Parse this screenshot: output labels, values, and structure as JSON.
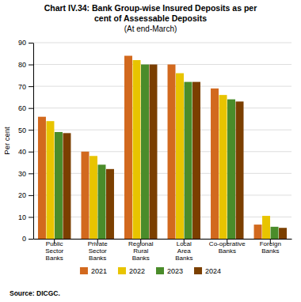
{
  "chart_data": {
    "type": "bar",
    "title": "Chart IV.34: Bank Group-wise Insured Deposits as per\ncent of Assessable Deposits",
    "subtitle": "(At end-March)",
    "y_label": "Per cent",
    "source": "Source: DICGC.",
    "categories": [
      "Public\nSector\nBanks",
      "Private\nSector\nBanks",
      "Regional\nRural\nBanks",
      "Local\nArea\nBanks",
      "Co-operative\nBanks",
      "Foreign\nBanks"
    ],
    "series": [
      {
        "name": "2021",
        "color": "#D2691E",
        "values": [
          56,
          40,
          84,
          80,
          69,
          6.5
        ]
      },
      {
        "name": "2022",
        "color": "#E8C400",
        "values": [
          54,
          38,
          82,
          76,
          66,
          10.5
        ]
      },
      {
        "name": "2023",
        "color": "#4a8c2a",
        "values": [
          49,
          34,
          80,
          72,
          64,
          5.5
        ]
      },
      {
        "name": "2024",
        "color": "#7B3F00",
        "values": [
          48.5,
          32,
          80,
          72,
          63,
          5
        ]
      }
    ],
    "ylim": [
      0,
      90
    ],
    "yticks": [
      0,
      10,
      20,
      30,
      40,
      50,
      60,
      70,
      80,
      90
    ],
    "grid": true,
    "legend": "bottom"
  }
}
